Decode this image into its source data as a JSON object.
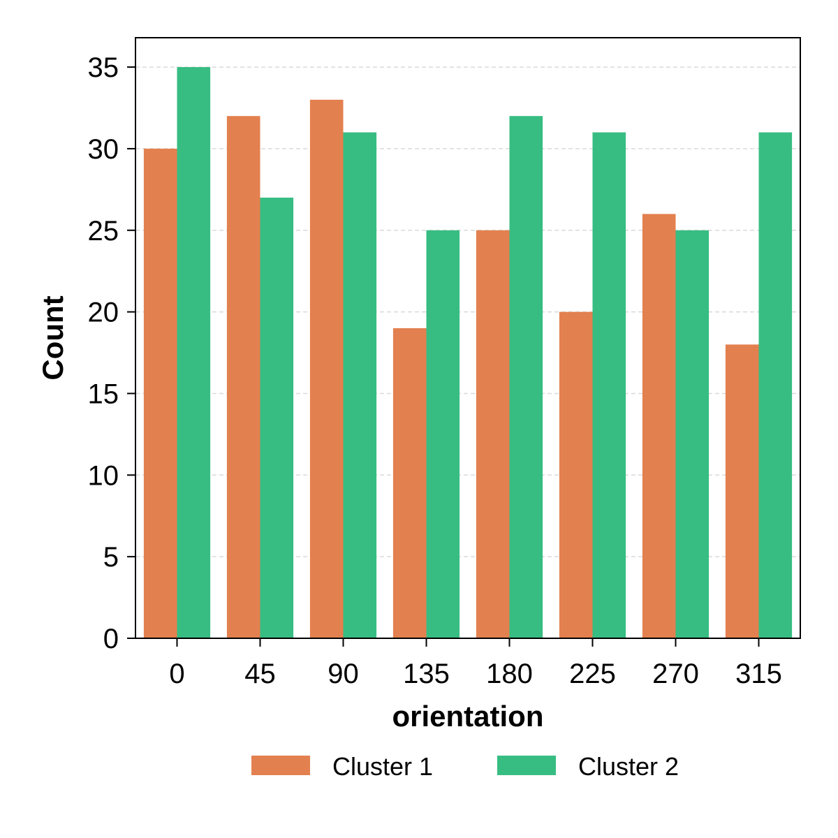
{
  "chart_data": {
    "type": "bar",
    "categories": [
      "0",
      "45",
      "90",
      "135",
      "180",
      "225",
      "270",
      "315"
    ],
    "series": [
      {
        "name": "Cluster 1",
        "color": "#e3804f",
        "values": [
          30,
          32,
          33,
          19,
          25,
          20,
          26,
          18
        ]
      },
      {
        "name": "Cluster 2",
        "color": "#37bd82",
        "values": [
          35,
          27,
          31,
          25,
          32,
          31,
          25,
          31
        ]
      }
    ],
    "xlabel": "orientation",
    "ylabel": "Count",
    "ylim": [
      0,
      36.8
    ],
    "yticks": [
      0,
      5,
      10,
      15,
      20,
      25,
      30,
      35
    ],
    "grid": {
      "y": true,
      "style": "dashed",
      "color": "#d9d9d9"
    },
    "legend": {
      "position": "bottom-center",
      "columns": 2
    }
  }
}
